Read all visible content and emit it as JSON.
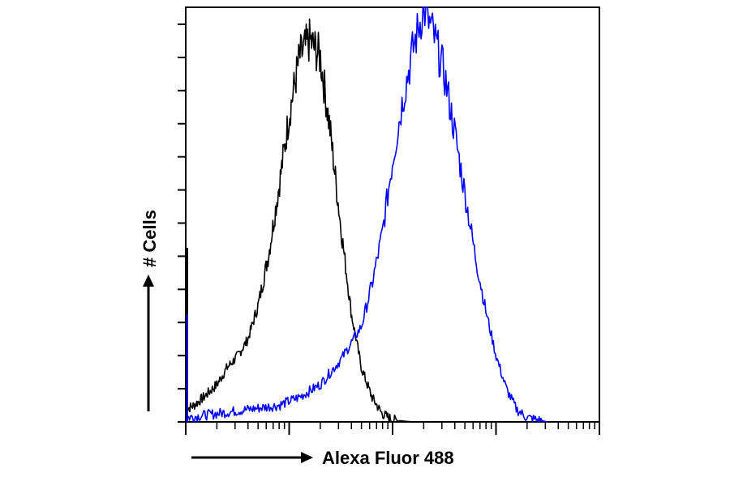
{
  "chart_data": {
    "type": "line",
    "title": "",
    "xlabel": "Alexa Fluor 488",
    "ylabel": "# Cells",
    "x_scale": "log",
    "xlim": [
      1,
      10000
    ],
    "ylim": [
      0,
      100
    ],
    "grid": false,
    "series": [
      {
        "color": "#000000",
        "x": [
          1.0,
          1.2,
          1.5,
          2.0,
          2.5,
          3.2,
          4.0,
          5.0,
          6.3,
          8.0,
          10,
          12.6,
          15.8,
          20,
          25,
          31.6,
          40,
          50,
          63,
          79,
          100,
          126,
          158,
          200,
          251,
          316
        ],
        "values": [
          3,
          4,
          6,
          9,
          13,
          16,
          20,
          28,
          40,
          57,
          74,
          88,
          92,
          88,
          70,
          47,
          26,
          13,
          6,
          2,
          0.5,
          0.2,
          0,
          0,
          0,
          0
        ]
      },
      {
        "color": "#0000ff",
        "x": [
          1.0,
          2.0,
          4.0,
          8.0,
          12.6,
          20,
          31.6,
          50,
          63,
          79,
          100,
          126,
          158,
          200,
          251,
          316,
          398,
          501,
          631,
          794,
          1000,
          1259,
          1585,
          2000,
          2512,
          3162
        ],
        "values": [
          1,
          2,
          3,
          4,
          6,
          9,
          15,
          23,
          33,
          45,
          63,
          78,
          90,
          100,
          93,
          84,
          70,
          55,
          40,
          27,
          16,
          8,
          3,
          1,
          0.5,
          0
        ]
      }
    ]
  }
}
